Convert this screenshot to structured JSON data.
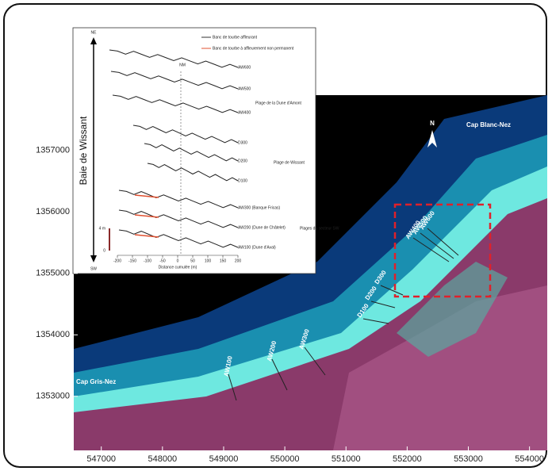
{
  "map": {
    "xlim": [
      546550,
      554290
    ],
    "ylim": [
      1352120,
      1357900
    ],
    "xticks": [
      547000,
      548000,
      549000,
      550000,
      551000,
      552000,
      553000,
      554000
    ],
    "yticks": [
      1353000,
      1354000,
      1355000,
      1356000,
      1357000
    ],
    "places": [
      "Cap Gris-Nez",
      "Cap Blanc-Nez"
    ],
    "north": "N",
    "profiles": [
      "AW100",
      "AW200",
      "AW300",
      "D100",
      "D200",
      "D300",
      "AW400",
      "AW500",
      "AW600"
    ]
  },
  "inset": {
    "legend": [
      "Banc de tourbe affleurant",
      "Banc de tourbe à affleurement non permanent"
    ],
    "axis_top": "NE",
    "axis_bottom": "SW",
    "axis_label": "Baie de Wissant",
    "center_label": "NM",
    "profiles": [
      "AW600",
      "AW500",
      "AW400",
      "D300",
      "D200",
      "D100",
      "AW300 (Banque Fricas)",
      "AW200 (Dune de Châtelet)",
      "AW100 (Dune d'Aval)"
    ],
    "groups": [
      "Plage de la Dune d'Amont",
      "Plage de Wissant",
      "Plages du secteur SW"
    ],
    "xlim": [
      -200,
      200
    ],
    "xticks": [
      -200,
      -150,
      -100,
      -50,
      0,
      50,
      100,
      150,
      200
    ],
    "xlabel": "Distance cumulée (m)",
    "scale_top": "4 m",
    "scale_bottom": "0"
  }
}
